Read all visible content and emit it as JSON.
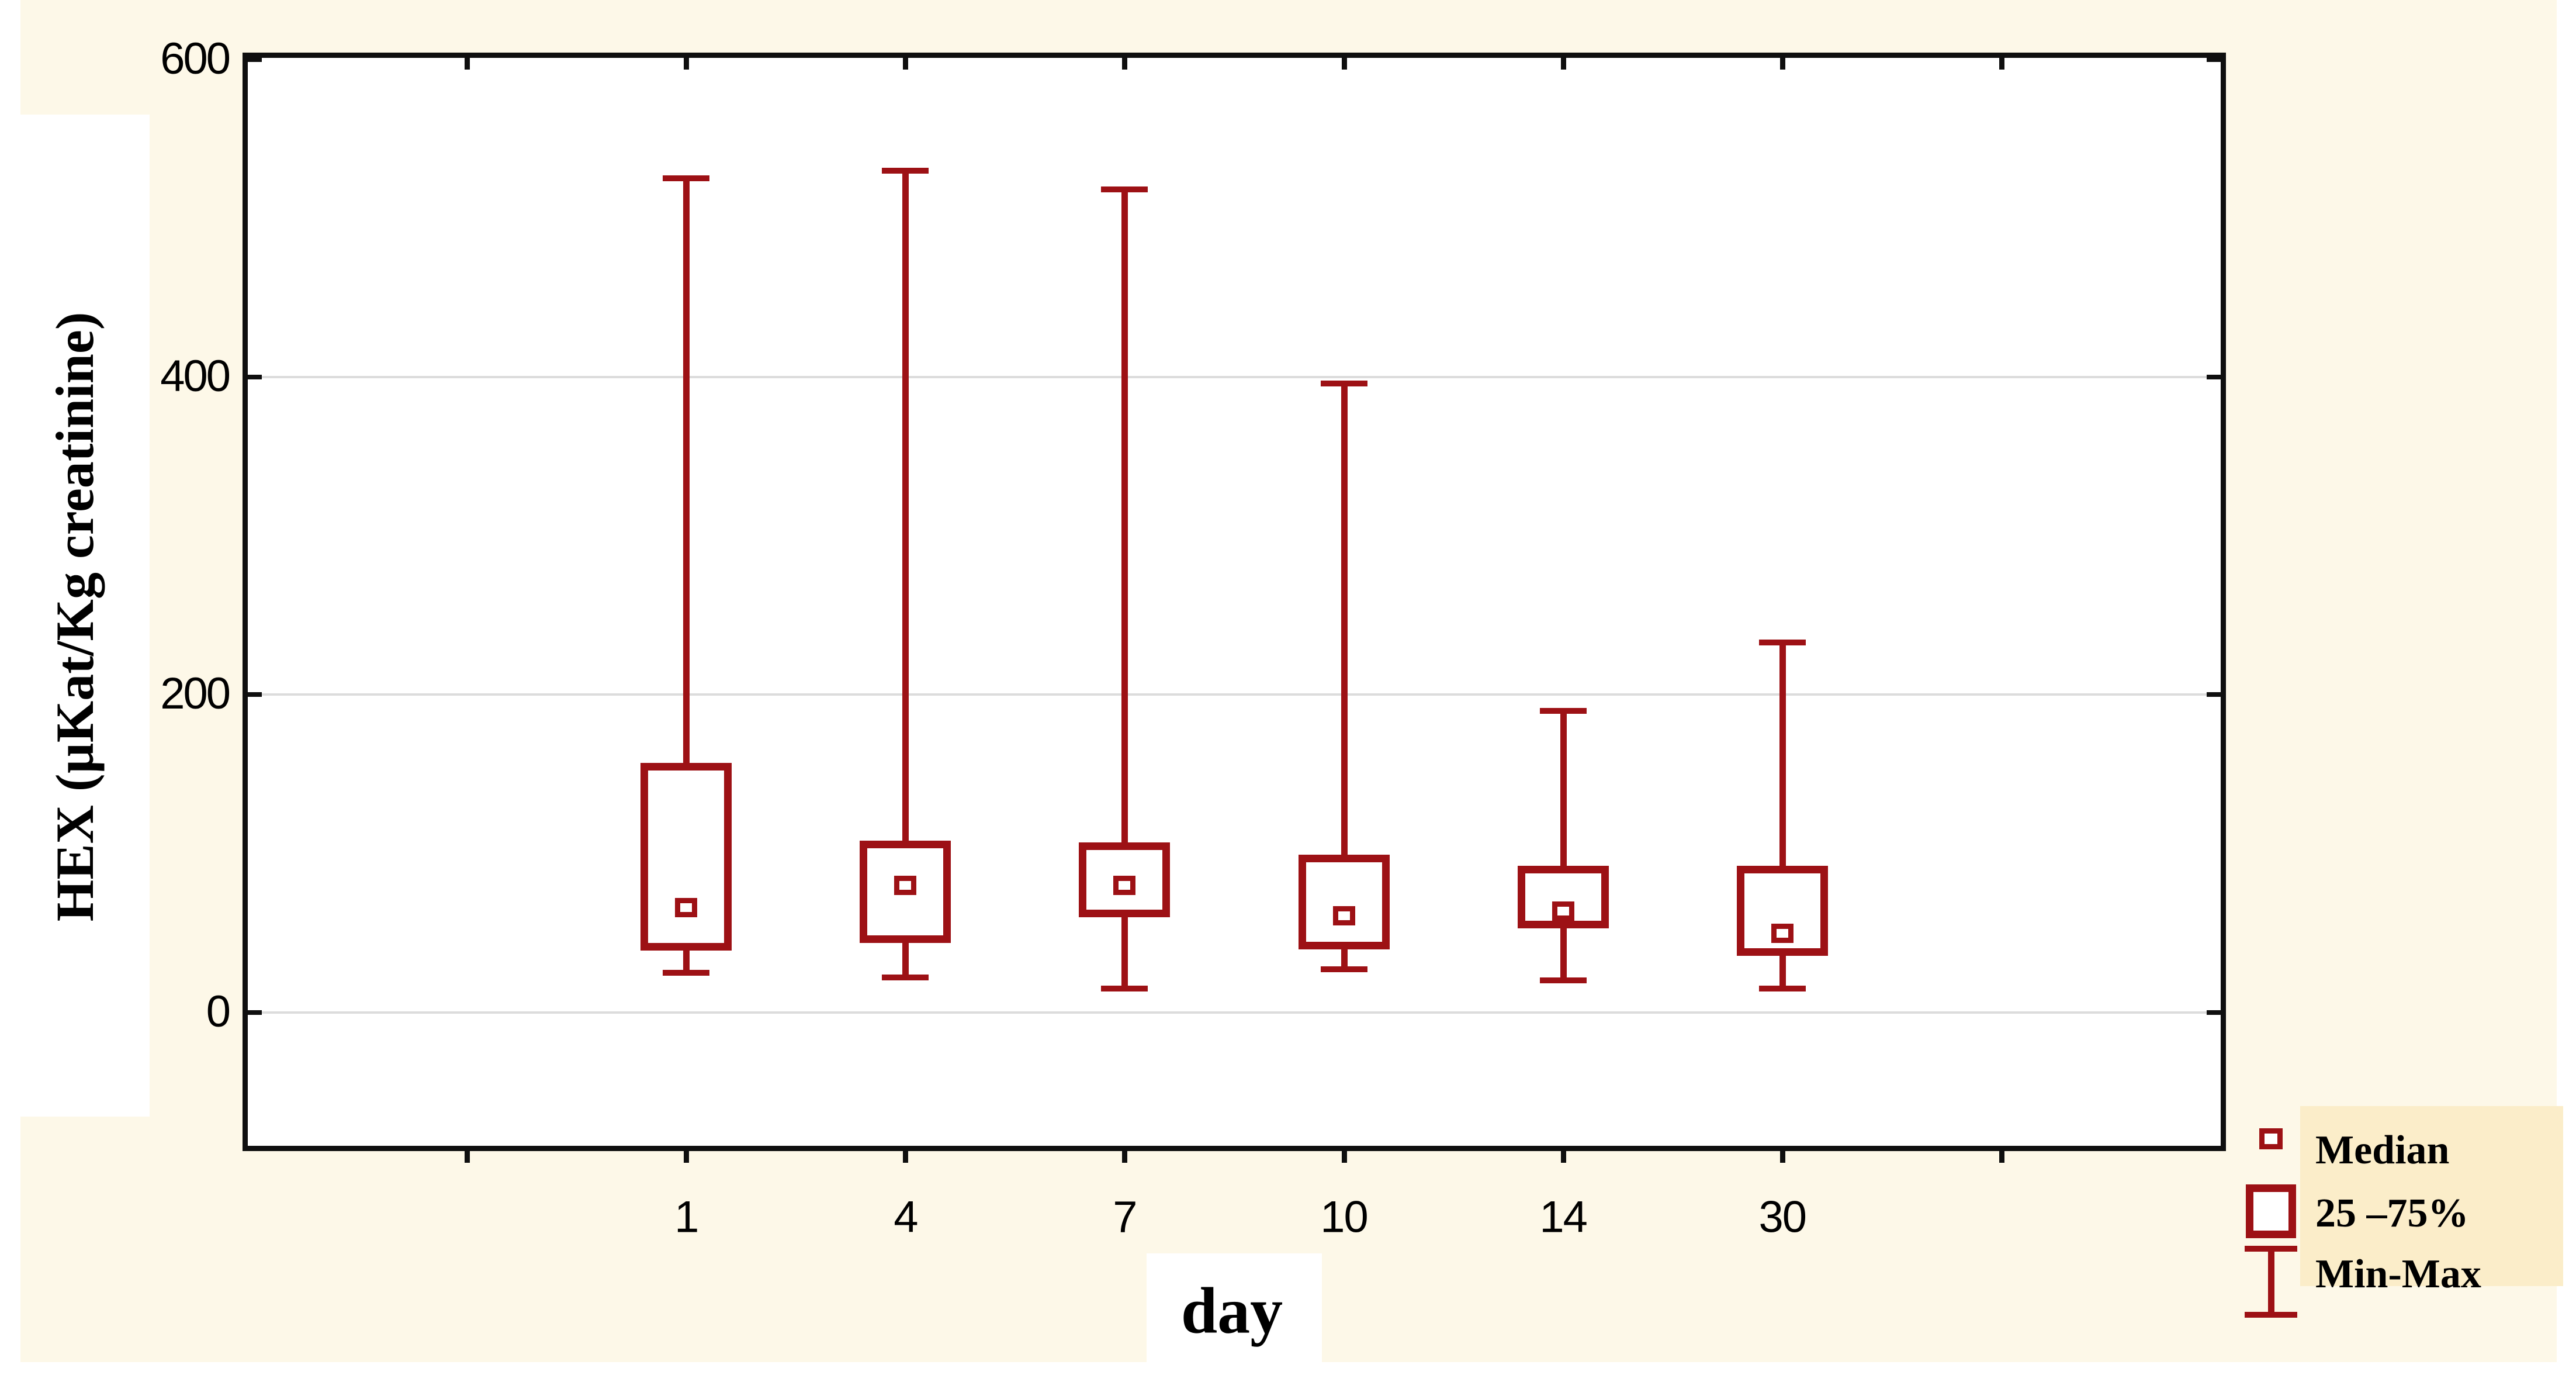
{
  "figure": {
    "background_color": "#FDF8E8",
    "plot_background": "#FFFFFF",
    "frame_color": "#0F0F0F",
    "grid_color": "#DCDCDC",
    "accent_color": "#9D1115",
    "text_color": "#000000",
    "legend_background": "#FBEDC9"
  },
  "chart_data": {
    "type": "boxplot",
    "title": "",
    "xlabel": "day",
    "ylabel": "HEX (µKat/Kg creatinine)",
    "categories": [
      "1",
      "4",
      "7",
      "10",
      "14",
      "30"
    ],
    "boxes": [
      {
        "label": "1",
        "min": 25,
        "q1": 41,
        "median": 66,
        "q3": 155,
        "max": 525
      },
      {
        "label": "4",
        "min": 22,
        "q1": 46,
        "median": 80,
        "q3": 106,
        "max": 530
      },
      {
        "label": "7",
        "min": 15,
        "q1": 62,
        "median": 80,
        "q3": 105,
        "max": 518
      },
      {
        "label": "10",
        "min": 27,
        "q1": 42,
        "median": 61,
        "q3": 97,
        "max": 396
      },
      {
        "label": "14",
        "min": 20,
        "q1": 55,
        "median": 64,
        "q3": 90,
        "max": 190
      },
      {
        "label": "30",
        "min": 15,
        "q1": 38,
        "median": 50,
        "q3": 90,
        "max": 233
      }
    ],
    "ylim": [
      -84,
      601
    ],
    "yticks": [
      0,
      200,
      400,
      600
    ],
    "ytick_labels": [
      "0",
      "200",
      "400",
      "600"
    ],
    "grid": "horizontal gridlines at 0, 200, 400",
    "legend_position": "bottom-right",
    "legend": [
      {
        "symbol": "median-square",
        "label": "Median"
      },
      {
        "symbol": "iqr-box",
        "label": "25 –75%"
      },
      {
        "symbol": "min-max-whisker",
        "label": "Min-Max"
      }
    ]
  }
}
